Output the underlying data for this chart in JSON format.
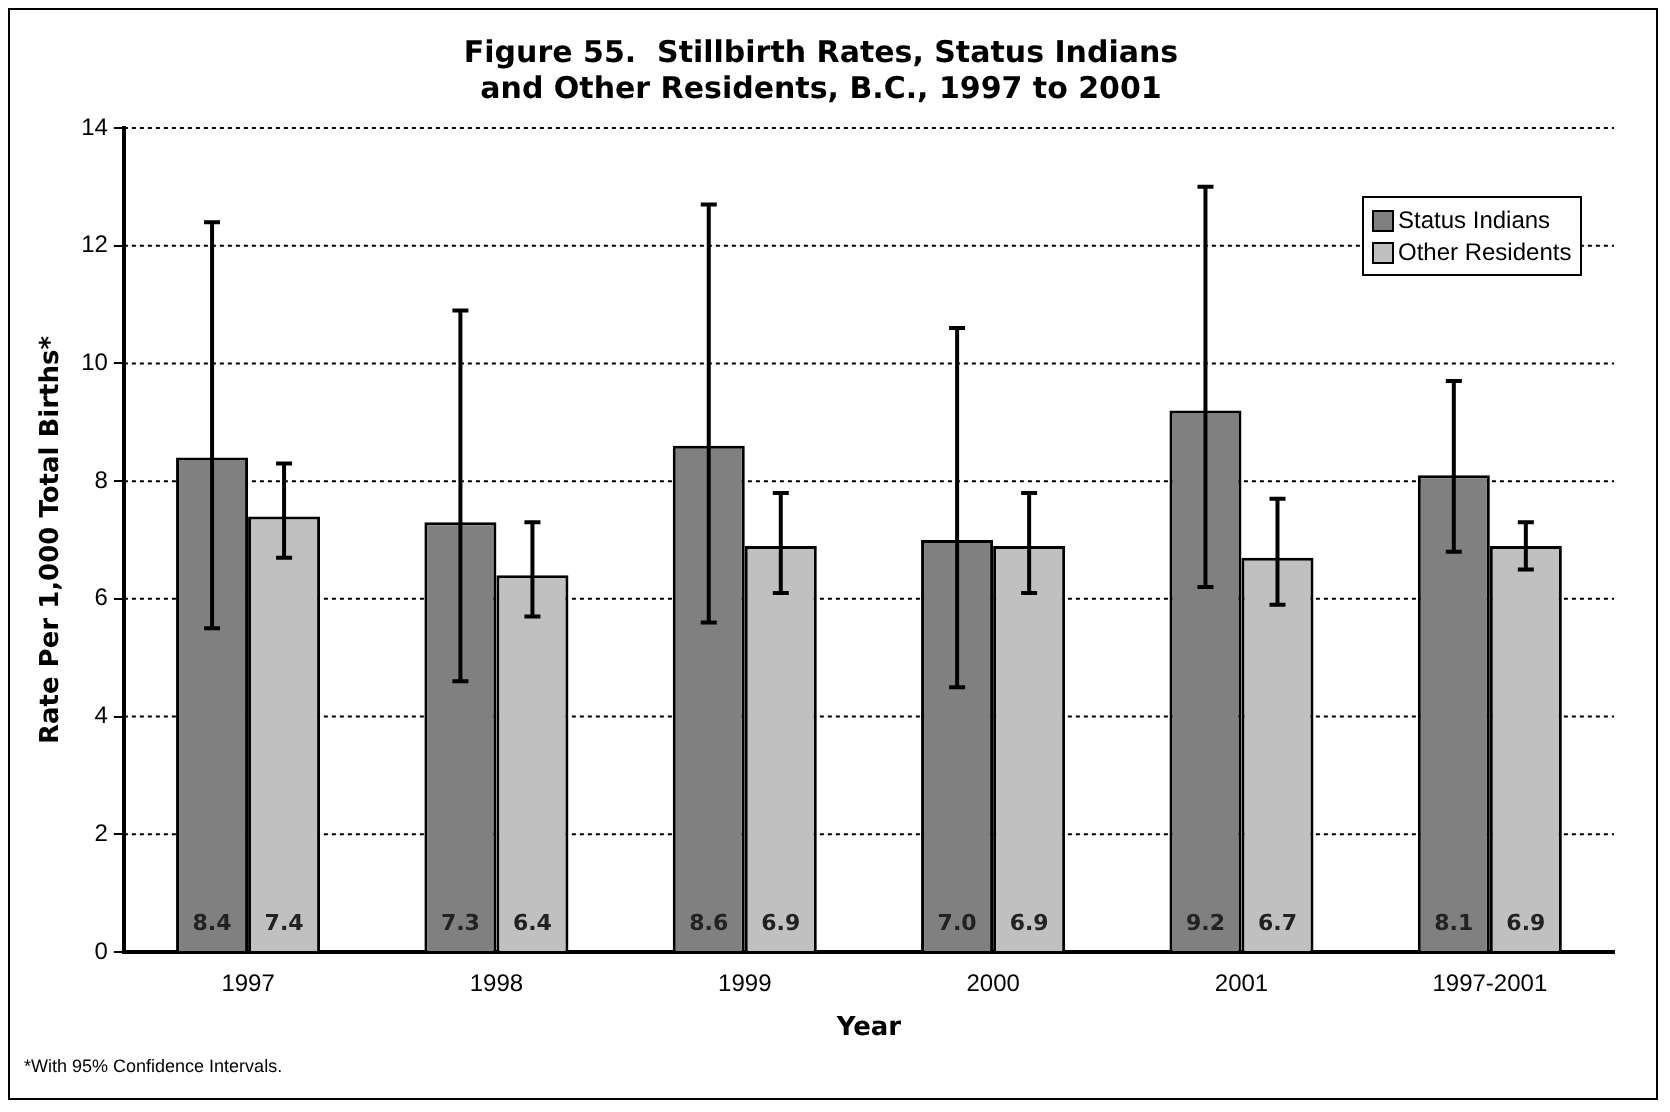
{
  "chart_data": {
    "type": "bar",
    "title": "Figure 55.  Stillbirth Rates, Status Indians\nand Other Residents, B.C., 1997 to 2001",
    "xlabel": "Year",
    "ylabel": "Rate Per 1,000 Total Births*",
    "categories": [
      "1997",
      "1998",
      "1999",
      "2000",
      "2001",
      "1997-2001"
    ],
    "series": [
      {
        "name": "Status Indians",
        "color": "#808080",
        "values": [
          8.4,
          7.3,
          8.6,
          7.0,
          9.2,
          8.1
        ],
        "value_labels": [
          "8.4",
          "7.3",
          "8.6",
          "7.0",
          "9.2",
          "8.1"
        ],
        "errors": [
          [
            5.5,
            12.4
          ],
          [
            4.6,
            10.9
          ],
          [
            5.6,
            12.7
          ],
          [
            4.5,
            10.6
          ],
          [
            6.2,
            13.0
          ],
          [
            6.8,
            9.7
          ]
        ]
      },
      {
        "name": "Other Residents",
        "color": "#c0c0c0",
        "values": [
          7.4,
          6.4,
          6.9,
          6.9,
          6.7,
          6.9
        ],
        "value_labels": [
          "7.4",
          "6.4",
          "6.9",
          "6.9",
          "6.7",
          "6.9"
        ],
        "errors": [
          [
            6.7,
            8.3
          ],
          [
            5.7,
            7.3
          ],
          [
            6.1,
            7.8
          ],
          [
            6.1,
            7.8
          ],
          [
            5.9,
            7.7
          ],
          [
            6.5,
            7.3
          ]
        ]
      }
    ],
    "ylim": [
      0,
      14
    ],
    "yticks": [
      0,
      2,
      4,
      6,
      8,
      10,
      12,
      14
    ],
    "grid": "y",
    "legend": "top right",
    "annotations": [
      "*With 95% Confidence Intervals."
    ]
  }
}
